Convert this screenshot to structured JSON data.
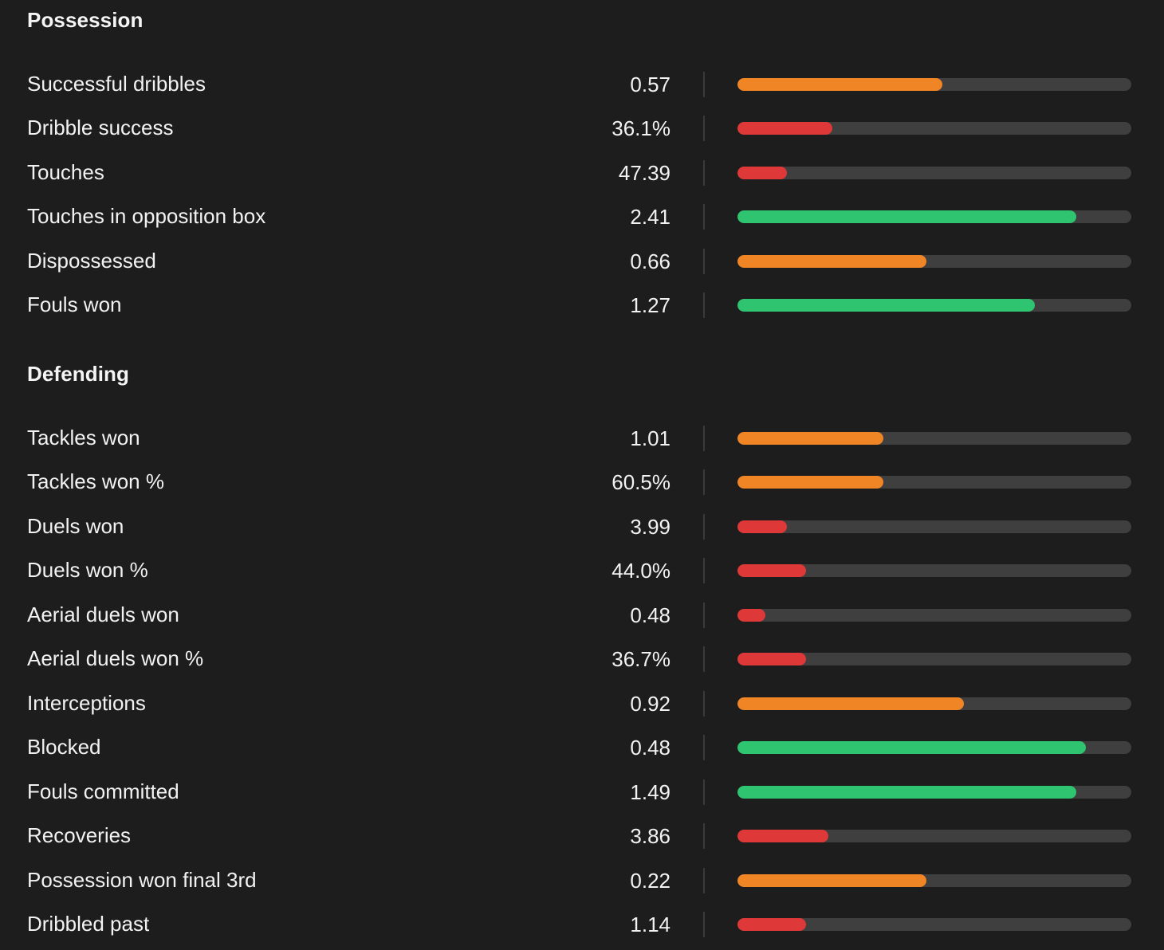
{
  "colors": {
    "background": "#1d1d1d",
    "track": "#3f3f3f",
    "good": "#2fc46f",
    "average": "#f08526",
    "poor": "#df3838"
  },
  "sections": [
    {
      "title": "Possession",
      "stats": [
        {
          "label": "Successful dribbles",
          "value": "0.57",
          "fill": 0.52,
          "rating": "average"
        },
        {
          "label": "Dribble success",
          "value": "36.1%",
          "fill": 0.24,
          "rating": "poor"
        },
        {
          "label": "Touches",
          "value": "47.39",
          "fill": 0.125,
          "rating": "poor"
        },
        {
          "label": "Touches in opposition box",
          "value": "2.41",
          "fill": 0.86,
          "rating": "good"
        },
        {
          "label": "Dispossessed",
          "value": "0.66",
          "fill": 0.48,
          "rating": "average"
        },
        {
          "label": "Fouls won",
          "value": "1.27",
          "fill": 0.755,
          "rating": "good"
        }
      ]
    },
    {
      "title": "Defending",
      "stats": [
        {
          "label": "Tackles won",
          "value": "1.01",
          "fill": 0.37,
          "rating": "average"
        },
        {
          "label": "Tackles won %",
          "value": "60.5%",
          "fill": 0.37,
          "rating": "average"
        },
        {
          "label": "Duels won",
          "value": "3.99",
          "fill": 0.125,
          "rating": "poor"
        },
        {
          "label": "Duels won %",
          "value": "44.0%",
          "fill": 0.175,
          "rating": "poor"
        },
        {
          "label": "Aerial duels won",
          "value": "0.48",
          "fill": 0.07,
          "rating": "poor"
        },
        {
          "label": "Aerial duels won %",
          "value": "36.7%",
          "fill": 0.175,
          "rating": "poor"
        },
        {
          "label": "Interceptions",
          "value": "0.92",
          "fill": 0.575,
          "rating": "average"
        },
        {
          "label": "Blocked",
          "value": "0.48",
          "fill": 0.885,
          "rating": "good"
        },
        {
          "label": "Fouls committed",
          "value": "1.49",
          "fill": 0.86,
          "rating": "good"
        },
        {
          "label": "Recoveries",
          "value": "3.86",
          "fill": 0.23,
          "rating": "poor"
        },
        {
          "label": "Possession won final 3rd",
          "value": "0.22",
          "fill": 0.48,
          "rating": "average"
        },
        {
          "label": "Dribbled past",
          "value": "1.14",
          "fill": 0.175,
          "rating": "poor"
        }
      ]
    }
  ]
}
